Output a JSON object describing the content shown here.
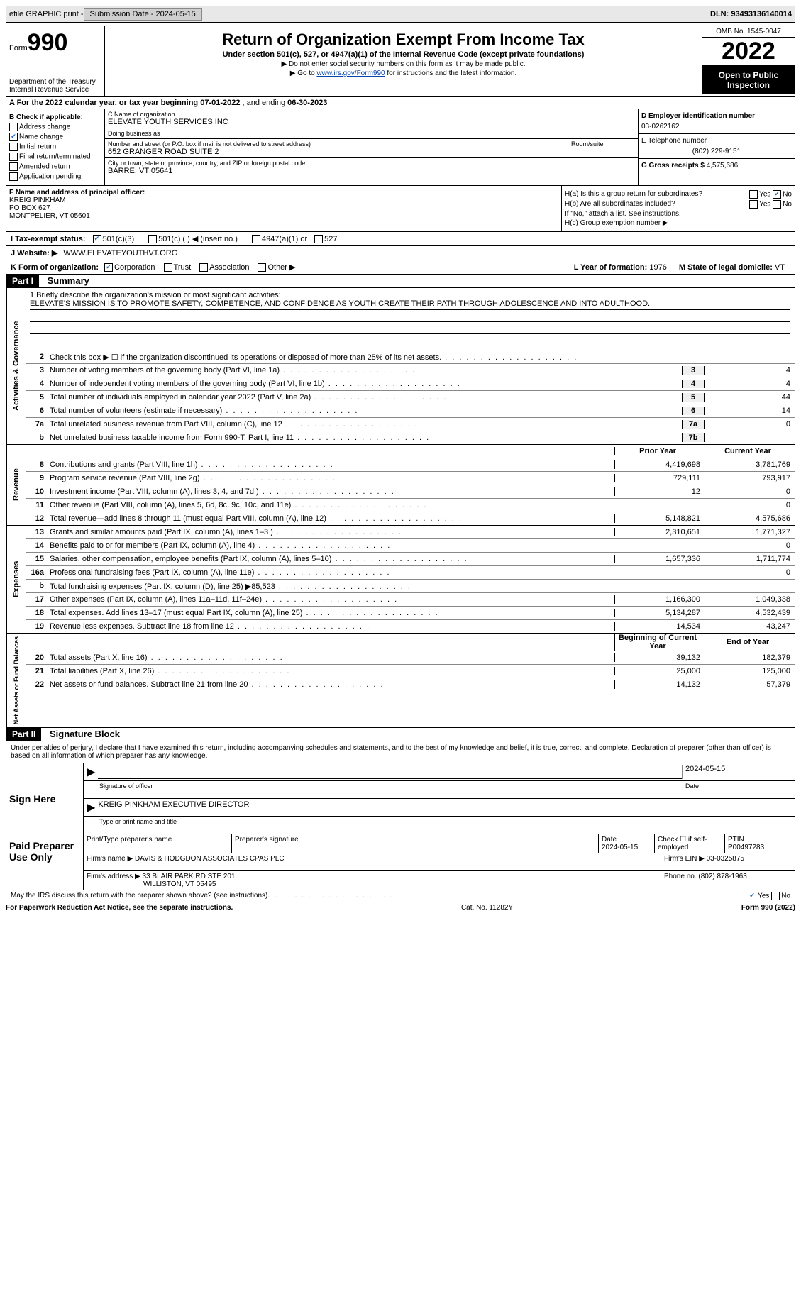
{
  "topbar": {
    "efile": "efile GRAPHIC print -",
    "submission_label": "Submission Date - 2024-05-15",
    "dln": "DLN: 93493136140014"
  },
  "header": {
    "form_label": "Form",
    "form_number": "990",
    "dept": "Department of the Treasury",
    "irs": "Internal Revenue Service",
    "title": "Return of Organization Exempt From Income Tax",
    "sub": "Under section 501(c), 527, or 4947(a)(1) of the Internal Revenue Code (except private foundations)",
    "note1": "▶ Do not enter social security numbers on this form as it may be made public.",
    "note2_pre": "▶ Go to ",
    "note2_link": "www.irs.gov/Form990",
    "note2_post": " for instructions and the latest information.",
    "omb": "OMB No. 1545-0047",
    "year": "2022",
    "open": "Open to Public Inspection"
  },
  "line_a": {
    "pre": "A For the 2022 calendar year, or tax year beginning ",
    "begin": "07-01-2022",
    "mid": " , and ending ",
    "end": "06-30-2023"
  },
  "col_b": {
    "title": "B Check if applicable:",
    "opts": [
      "Address change",
      "Name change",
      "Initial return",
      "Final return/terminated",
      "Amended return",
      "Application pending"
    ],
    "checked_idx": 1
  },
  "col_c": {
    "name_label": "C Name of organization",
    "name": "ELEVATE YOUTH SERVICES INC",
    "dba_label": "Doing business as",
    "dba": "",
    "street_label": "Number and street (or P.O. box if mail is not delivered to street address)",
    "street": "652 GRANGER ROAD SUITE 2",
    "room_label": "Room/suite",
    "room": "",
    "city_label": "City or town, state or province, country, and ZIP or foreign postal code",
    "city": "BARRE, VT  05641"
  },
  "col_de": {
    "d_label": "D Employer identification number",
    "d_val": "03-0262162",
    "e_label": "E Telephone number",
    "e_val": "(802) 229-9151",
    "g_label": "G Gross receipts $",
    "g_val": "4,575,686"
  },
  "section_f": {
    "label": "F Name and address of principal officer:",
    "name": "KREIG PINKHAM",
    "addr1": "PO BOX 627",
    "addr2": "MONTPELIER, VT  05601"
  },
  "section_h": {
    "ha": "H(a) Is this a group return for subordinates?",
    "ha_yes": "Yes",
    "ha_no": "No",
    "hb": "H(b) Are all subordinates included?",
    "hb_note": "If \"No,\" attach a list. See instructions.",
    "hc": "H(c) Group exemption number ▶"
  },
  "line_i": {
    "label": "I   Tax-exempt status:",
    "opts": [
      "501(c)(3)",
      "501(c) (  ) ◀ (insert no.)",
      "4947(a)(1) or",
      "527"
    ]
  },
  "line_j": {
    "label": "J   Website: ▶",
    "val": "WWW.ELEVATEYOUTHVT.ORG"
  },
  "line_k": {
    "label": "K Form of organization:",
    "opts": [
      "Corporation",
      "Trust",
      "Association",
      "Other ▶"
    ],
    "l_label": "L Year of formation:",
    "l_val": "1976",
    "m_label": "M State of legal domicile:",
    "m_val": "VT"
  },
  "parts": {
    "p1": "Part I",
    "p1_title": "Summary",
    "p2": "Part II",
    "p2_title": "Signature Block"
  },
  "mission": {
    "q": "1  Briefly describe the organization's mission or most significant activities:",
    "text": "ELEVATE'S MISSION IS TO PROMOTE SAFETY, COMPETENCE, AND CONFIDENCE AS YOUTH CREATE THEIR PATH THROUGH ADOLESCENCE AND INTO ADULTHOOD."
  },
  "act_gov": [
    {
      "n": "2",
      "d": "Check this box ▶ ☐ if the organization discontinued its operations or disposed of more than 25% of its net assets.",
      "b": "",
      "v": ""
    },
    {
      "n": "3",
      "d": "Number of voting members of the governing body (Part VI, line 1a)",
      "b": "3",
      "v": "4"
    },
    {
      "n": "4",
      "d": "Number of independent voting members of the governing body (Part VI, line 1b)",
      "b": "4",
      "v": "4"
    },
    {
      "n": "5",
      "d": "Total number of individuals employed in calendar year 2022 (Part V, line 2a)",
      "b": "5",
      "v": "44"
    },
    {
      "n": "6",
      "d": "Total number of volunteers (estimate if necessary)",
      "b": "6",
      "v": "14"
    },
    {
      "n": "7a",
      "d": "Total unrelated business revenue from Part VIII, column (C), line 12",
      "b": "7a",
      "v": "0"
    },
    {
      "n": "b",
      "d": "Net unrelated business taxable income from Form 990-T, Part I, line 11",
      "b": "7b",
      "v": ""
    }
  ],
  "two_col_hdr": {
    "py": "Prior Year",
    "cy": "Current Year"
  },
  "revenue": [
    {
      "n": "8",
      "d": "Contributions and grants (Part VIII, line 1h)",
      "p": "4,419,698",
      "c": "3,781,769"
    },
    {
      "n": "9",
      "d": "Program service revenue (Part VIII, line 2g)",
      "p": "729,111",
      "c": "793,917"
    },
    {
      "n": "10",
      "d": "Investment income (Part VIII, column (A), lines 3, 4, and 7d )",
      "p": "12",
      "c": "0"
    },
    {
      "n": "11",
      "d": "Other revenue (Part VIII, column (A), lines 5, 6d, 8c, 9c, 10c, and 11e)",
      "p": "",
      "c": "0"
    },
    {
      "n": "12",
      "d": "Total revenue—add lines 8 through 11 (must equal Part VIII, column (A), line 12)",
      "p": "5,148,821",
      "c": "4,575,686"
    }
  ],
  "expenses": [
    {
      "n": "13",
      "d": "Grants and similar amounts paid (Part IX, column (A), lines 1–3 )",
      "p": "2,310,651",
      "c": "1,771,327"
    },
    {
      "n": "14",
      "d": "Benefits paid to or for members (Part IX, column (A), line 4)",
      "p": "",
      "c": "0"
    },
    {
      "n": "15",
      "d": "Salaries, other compensation, employee benefits (Part IX, column (A), lines 5–10)",
      "p": "1,657,336",
      "c": "1,711,774"
    },
    {
      "n": "16a",
      "d": "Professional fundraising fees (Part IX, column (A), line 11e)",
      "p": "",
      "c": "0"
    },
    {
      "n": "b",
      "d": "Total fundraising expenses (Part IX, column (D), line 25) ▶85,523",
      "p": "shaded",
      "c": "shaded"
    },
    {
      "n": "17",
      "d": "Other expenses (Part IX, column (A), lines 11a–11d, 11f–24e)",
      "p": "1,166,300",
      "c": "1,049,338"
    },
    {
      "n": "18",
      "d": "Total expenses. Add lines 13–17 (must equal Part IX, column (A), line 25)",
      "p": "5,134,287",
      "c": "4,532,439"
    },
    {
      "n": "19",
      "d": "Revenue less expenses. Subtract line 18 from line 12",
      "p": "14,534",
      "c": "43,247"
    }
  ],
  "net_hdr": {
    "b": "Beginning of Current Year",
    "e": "End of Year"
  },
  "net": [
    {
      "n": "20",
      "d": "Total assets (Part X, line 16)",
      "p": "39,132",
      "c": "182,379"
    },
    {
      "n": "21",
      "d": "Total liabilities (Part X, line 26)",
      "p": "25,000",
      "c": "125,000"
    },
    {
      "n": "22",
      "d": "Net assets or fund balances. Subtract line 21 from line 20",
      "p": "14,132",
      "c": "57,379"
    }
  ],
  "sig_declare": "Under penalties of perjury, I declare that I have examined this return, including accompanying schedules and statements, and to the best of my knowledge and belief, it is true, correct, and complete. Declaration of preparer (other than officer) is based on all information of which preparer has any knowledge.",
  "sign_here": "Sign Here",
  "sig": {
    "officer_sig": "Signature of officer",
    "date": "2024-05-15",
    "name_title": "KREIG PINKHAM  EXECUTIVE DIRECTOR",
    "name_label": "Type or print name and title"
  },
  "paid_prep": "Paid Preparer Use Only",
  "prep": {
    "name_lbl": "Print/Type preparer's name",
    "sig_lbl": "Preparer's signature",
    "date_lbl": "Date",
    "date": "2024-05-15",
    "check_lbl": "Check ☐ if self-employed",
    "ptin_lbl": "PTIN",
    "ptin": "P00497283",
    "firm_name_lbl": "Firm's name   ▶",
    "firm_name": "DAVIS & HODGDON ASSOCIATES CPAS PLC",
    "firm_ein_lbl": "Firm's EIN ▶",
    "firm_ein": "03-0325875",
    "firm_addr_lbl": "Firm's address ▶",
    "firm_addr1": "33 BLAIR PARK RD STE 201",
    "firm_addr2": "WILLISTON, VT  05495",
    "phone_lbl": "Phone no.",
    "phone": "(802) 878-1963"
  },
  "footer": {
    "q": "May the IRS discuss this return with the preparer shown above? (see instructions)",
    "yes": "Yes",
    "no": "No"
  },
  "bottom": {
    "left": "For Paperwork Reduction Act Notice, see the separate instructions.",
    "mid": "Cat. No. 11282Y",
    "right": "Form 990 (2022)"
  },
  "vtabs": {
    "ag": "Activities & Governance",
    "rev": "Revenue",
    "exp": "Expenses",
    "net": "Net Assets or Fund Balances"
  }
}
